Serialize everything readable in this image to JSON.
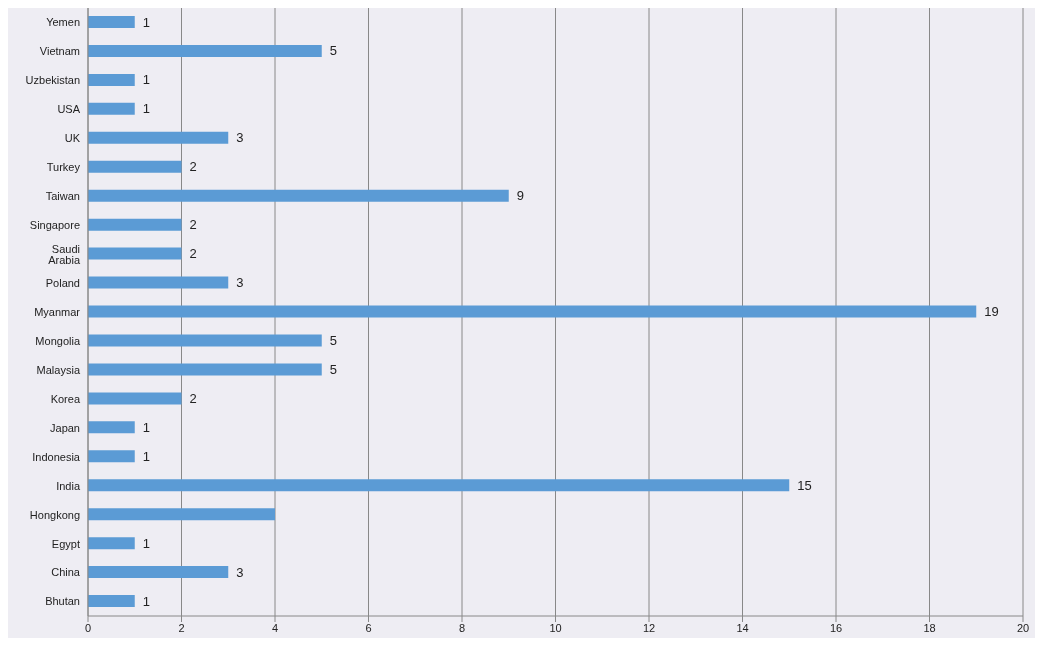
{
  "chart_data": {
    "type": "bar",
    "orientation": "horizontal",
    "categories": [
      "Yemen",
      "Vietnam",
      "Uzbekistan",
      "USA",
      "UK",
      "Turkey",
      "Taiwan",
      "Singapore",
      "Saudi Arabia",
      "Poland",
      "Myanmar",
      "Mongolia",
      "Malaysia",
      "Korea",
      "Japan",
      "Indonesia",
      "India",
      "Hongkong",
      "Egypt",
      "China",
      "Bhutan"
    ],
    "values": [
      1,
      5,
      1,
      1,
      3,
      2,
      9,
      2,
      2,
      3,
      19,
      5,
      5,
      2,
      1,
      1,
      15,
      4,
      1,
      3,
      1
    ],
    "value_labels": [
      "1",
      "5",
      "1",
      "1",
      "3",
      "2",
      "9",
      "2",
      "2",
      "3",
      "19",
      "5",
      "5",
      "2",
      "1",
      "1",
      "15",
      null,
      "1",
      "3",
      "1"
    ],
    "color": "#5b9bd5",
    "xlim": [
      0,
      20
    ],
    "xticks": [
      0,
      2,
      4,
      6,
      8,
      10,
      12,
      14,
      16,
      18,
      20
    ],
    "grid": "x",
    "legend": false
  }
}
